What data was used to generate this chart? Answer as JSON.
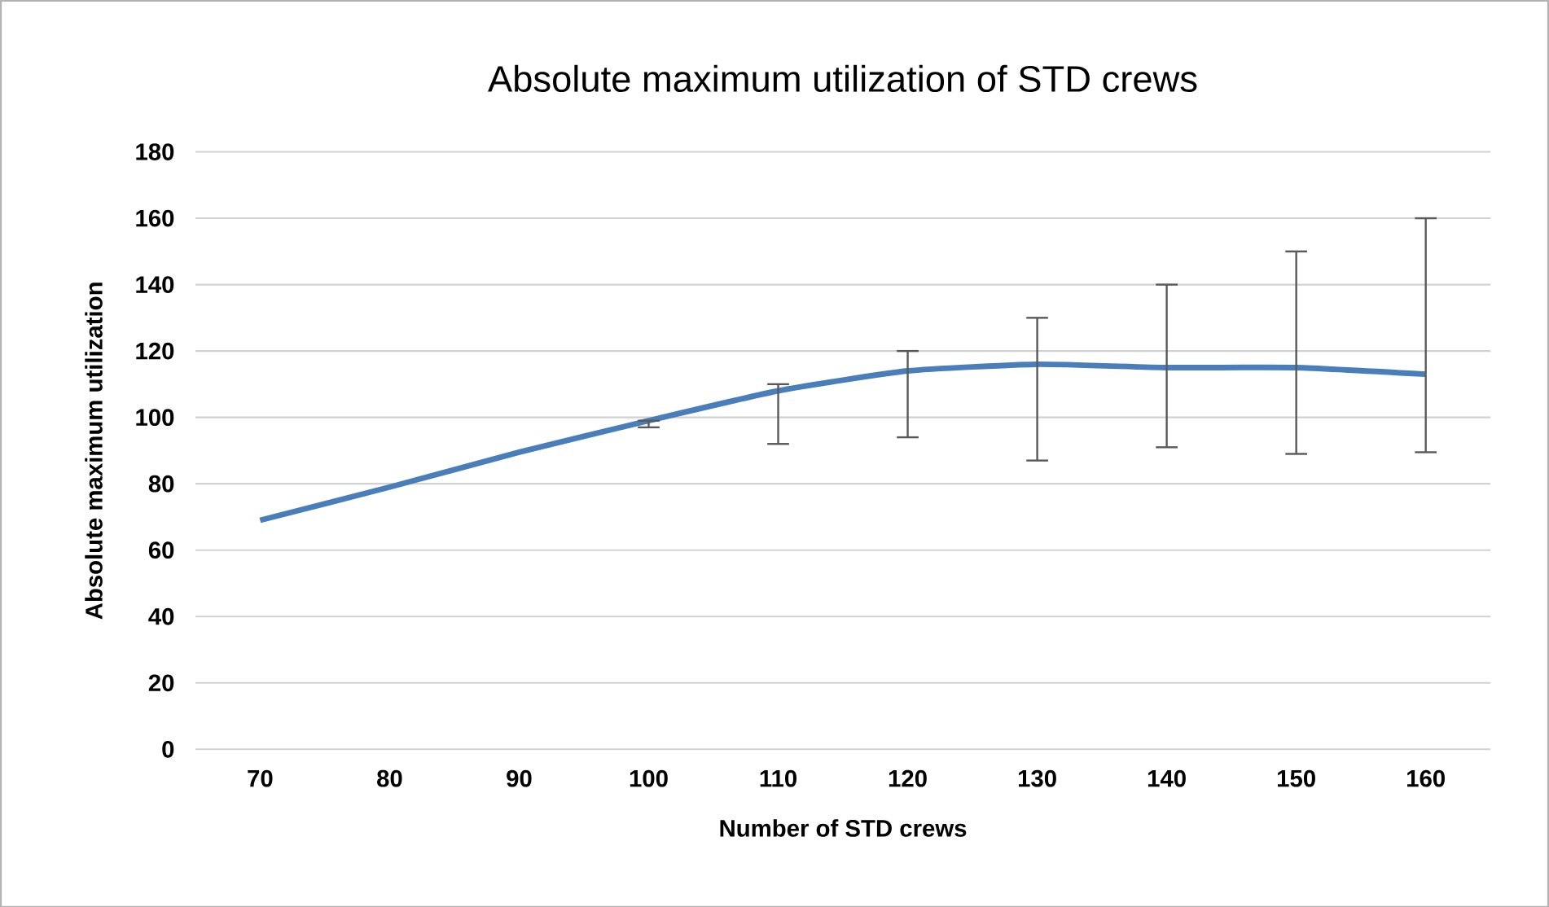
{
  "chart_data": {
    "type": "line",
    "title": "Absolute maximum utilization of STD crews",
    "xlabel": "Number of STD crews",
    "ylabel": "Absolute maximum utilization",
    "categories": [
      "70",
      "80",
      "90",
      "100",
      "110",
      "120",
      "130",
      "140",
      "150",
      "160"
    ],
    "series": [
      {
        "color": "#4a7ebb",
        "values": [
          69,
          79,
          89.5,
          99,
          108,
          114,
          116,
          115,
          115,
          113
        ],
        "errors": [
          null,
          null,
          null,
          [
            97,
            99
          ],
          [
            92,
            110
          ],
          [
            94,
            120
          ],
          [
            87,
            130
          ],
          [
            91,
            140
          ],
          [
            89,
            150
          ],
          [
            89.5,
            160
          ]
        ]
      }
    ],
    "ylim": [
      0,
      180
    ],
    "yticks": [
      0,
      20,
      40,
      60,
      80,
      100,
      120,
      140,
      160,
      180
    ],
    "grid": "y",
    "legend": false
  }
}
